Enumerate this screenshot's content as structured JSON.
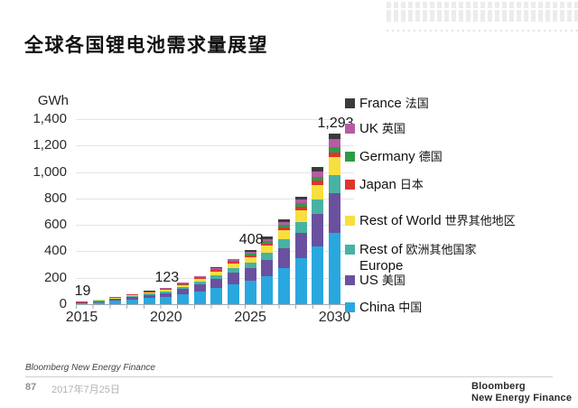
{
  "slide": {
    "title": "全球各国锂电池需求量展望",
    "footer": {
      "source": "Bloomberg New Energy Finance",
      "page": "87",
      "date": "2017年7月25日"
    },
    "logo": {
      "line1": "Bloomberg",
      "line2": "New Energy Finance"
    }
  },
  "chart_data": {
    "type": "bar",
    "stacked": true,
    "title": "全球各国锂电池需求量展望",
    "unit_label": "GWh",
    "categories": [
      2015,
      2016,
      2017,
      2018,
      2019,
      2020,
      2021,
      2022,
      2023,
      2024,
      2025,
      2026,
      2027,
      2028,
      2029,
      2030
    ],
    "x_axis_tick_labels": [
      "2015",
      "2020",
      "2025",
      "2030"
    ],
    "ylim": [
      0,
      1400
    ],
    "y_tick_step": 200,
    "y_tick_labels": [
      "0",
      "200",
      "400",
      "600",
      "800",
      "1,000",
      "1,200",
      "1,400"
    ],
    "grid": "horizontal",
    "legend_position": "right",
    "axis_colors": {
      "gridline": "#e4e4e4",
      "axis_line": "#a9a9a9"
    },
    "series": [
      {
        "name_en": "China",
        "name_zh": "中国",
        "color": "#29A8DF",
        "values": [
          8,
          15,
          24,
          35,
          45,
          55,
          73,
          98,
          125,
          150,
          175,
          215,
          270,
          345,
          440,
          540
        ]
      },
      {
        "name_en": "US",
        "name_zh": "美国",
        "color": "#6A51A0",
        "values": [
          5,
          9,
          14,
          19,
          25,
          30,
          40,
          52,
          68,
          88,
          98,
          122,
          155,
          195,
          245,
          300
        ]
      },
      {
        "name_en": "Rest of Europe",
        "name_zh": "欧洲其他国家",
        "color": "#48B2A3",
        "en_lines": [
          "Rest of",
          "Europe"
        ],
        "values": [
          2,
          3.5,
          5,
          7,
          9,
          11,
          15,
          19,
          26,
          33,
          40,
          51,
          65,
          82,
          105,
          140
        ]
      },
      {
        "name_en": "Rest of World",
        "name_zh": "世界其他地区",
        "color": "#F8DF3E",
        "values": [
          2,
          4,
          6,
          8,
          11,
          13,
          18,
          23,
          30,
          38,
          44,
          56,
          70,
          90,
          113,
          135
        ]
      },
      {
        "name_en": "Japan",
        "name_zh": "日本",
        "color": "#DC3530",
        "values": [
          1,
          1.5,
          2.5,
          3.5,
          4,
          5,
          7,
          8,
          10,
          11,
          13,
          16,
          20,
          25,
          30,
          35
        ]
      },
      {
        "name_en": "Germany",
        "name_zh": "德国",
        "color": "#2E9C44",
        "values": [
          0.5,
          0.9,
          1.5,
          2,
          3,
          4,
          5,
          6,
          8,
          10,
          13,
          16,
          20,
          25,
          31,
          36
        ]
      },
      {
        "name_en": "UK",
        "name_zh": "英国",
        "color": "#B55CA4",
        "values": [
          0.3,
          0.7,
          1,
          2,
          2,
          3,
          4.5,
          5,
          8,
          10,
          14,
          19,
          24,
          30,
          43,
          62
        ]
      },
      {
        "name_en": "France",
        "name_zh": "法国",
        "color": "#3B3B3B",
        "values": [
          0.2,
          0.4,
          1,
          1.5,
          1,
          2,
          2.5,
          4,
          5,
          5,
          11,
          15,
          21,
          18,
          28,
          45
        ]
      }
    ],
    "annotations": [
      {
        "year": 2015,
        "label": "19"
      },
      {
        "year": 2020,
        "label": "123"
      },
      {
        "year": 2025,
        "label": "408"
      },
      {
        "year": 2030,
        "label": "1,293"
      }
    ]
  }
}
